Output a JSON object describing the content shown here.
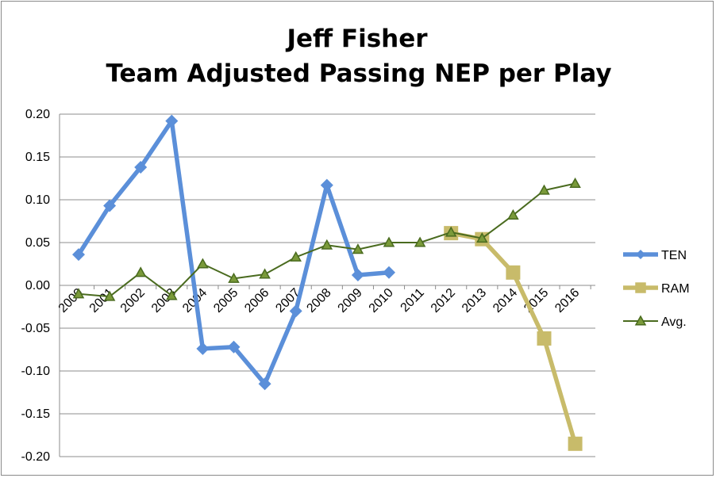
{
  "chart_data": {
    "type": "line",
    "title": [
      "Jeff Fisher",
      "Team Adjusted Passing NEP per Play"
    ],
    "xlabel": "",
    "ylabel": "",
    "categories": [
      "2000",
      "2001",
      "2002",
      "2003",
      "2004",
      "2005",
      "2006",
      "2007",
      "2008",
      "2009",
      "2010",
      "2011",
      "2012",
      "2013",
      "2014",
      "2015",
      "2016"
    ],
    "ylim": [
      -0.2,
      0.2
    ],
    "yticks": [
      0.2,
      0.15,
      0.1,
      0.05,
      0.0,
      -0.05,
      -0.1,
      -0.15,
      -0.2
    ],
    "ytick_labels": [
      "0.20",
      "0.15",
      "0.10",
      "0.05",
      "0.00",
      "-0.05",
      "-0.10",
      "-0.15",
      "-0.20"
    ],
    "grid": "horizontal",
    "legend_position": "right",
    "series": [
      {
        "name": "TEN",
        "color": "#5b8fd9",
        "marker": "diamond",
        "values": [
          0.036,
          0.093,
          0.138,
          0.192,
          -0.074,
          -0.072,
          -0.115,
          -0.03,
          0.117,
          0.012,
          0.015,
          null,
          null,
          null,
          null,
          null,
          null
        ]
      },
      {
        "name": "RAM",
        "color": "#c8bb6a",
        "marker": "square",
        "values": [
          null,
          null,
          null,
          null,
          null,
          null,
          null,
          null,
          null,
          null,
          null,
          null,
          0.061,
          0.054,
          0.015,
          -0.062,
          -0.185
        ]
      },
      {
        "name": "Avg.",
        "color": "#4a6b1f",
        "marker": "triangle",
        "values": [
          -0.01,
          -0.013,
          0.015,
          -0.012,
          0.025,
          0.008,
          0.013,
          0.033,
          0.047,
          0.042,
          0.05,
          0.05,
          0.062,
          0.055,
          0.082,
          0.111,
          0.119
        ]
      }
    ]
  }
}
